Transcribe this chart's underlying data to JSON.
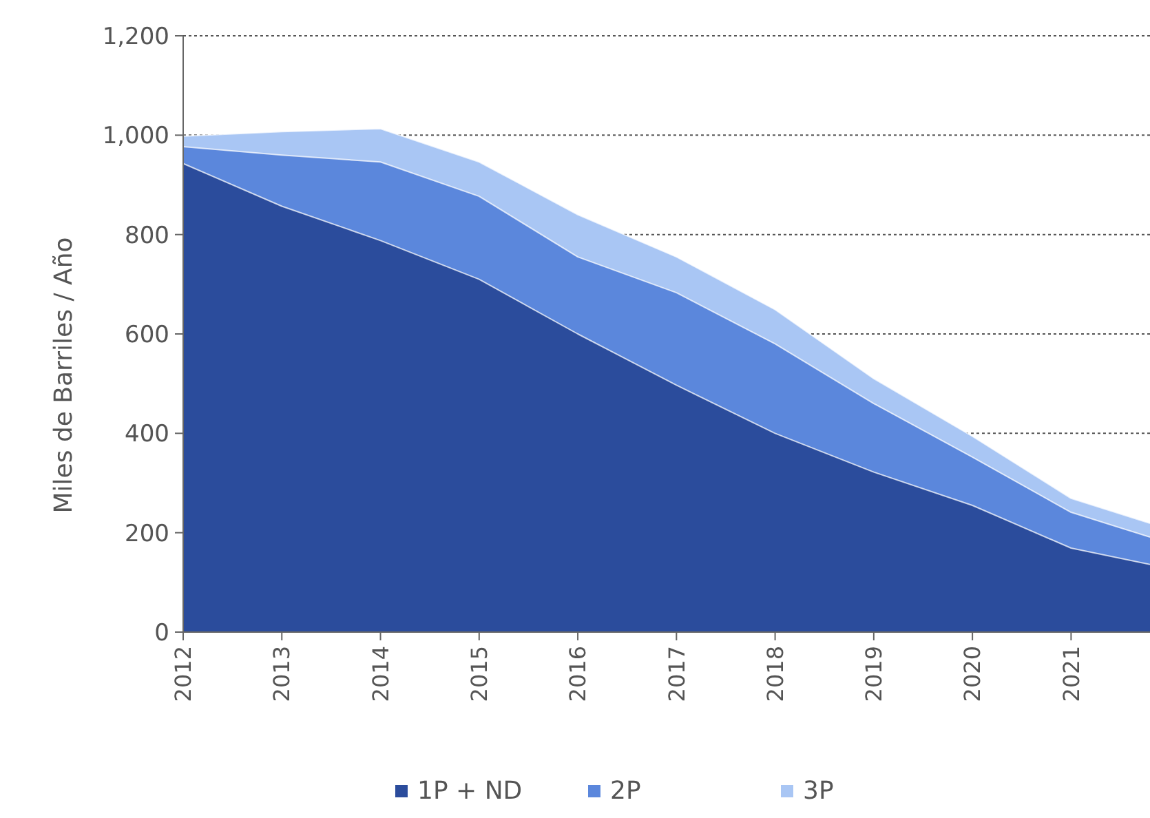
{
  "chart_data": {
    "type": "area",
    "stacked": true,
    "ylabel": "Miles de Barriles / Año",
    "x": [
      2012,
      2013,
      2014,
      2015,
      2016,
      2017,
      2018,
      2019,
      2020,
      2021,
      2021.8
    ],
    "xlim": [
      2012,
      2021.8
    ],
    "xticks": [
      2012,
      2013,
      2014,
      2015,
      2016,
      2017,
      2018,
      2019,
      2020,
      2021
    ],
    "ylim": [
      0,
      1200
    ],
    "yticks": [
      0,
      200,
      400,
      600,
      800,
      {
        "value": 1000,
        "label": "1,000"
      },
      {
        "value": 1200,
        "label": "1,200"
      }
    ],
    "grid": "y",
    "legend": "bottom",
    "series": [
      {
        "name": "1P + ND",
        "color": "#2b4c9c",
        "values": [
          943,
          857,
          788,
          710,
          600,
          497,
          400,
          322,
          255,
          169,
          136
        ]
      },
      {
        "name": "2P",
        "color": "#5b87dc",
        "values": [
          34,
          103,
          158,
          167,
          155,
          186,
          180,
          138,
          97,
          72,
          55
        ]
      },
      {
        "name": "3P",
        "color": "#a9c6f4",
        "values": [
          21,
          47,
          67,
          69,
          85,
          72,
          69,
          50,
          42,
          28,
          28
        ]
      }
    ]
  }
}
